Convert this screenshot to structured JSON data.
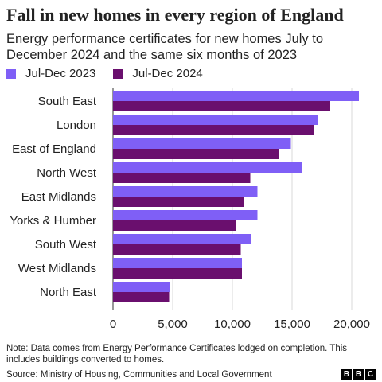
{
  "header": {
    "title": "Fall in new homes in every region of England",
    "subtitle": "Energy performance certificates for new homes July to December 2024 and the same six months of 2023"
  },
  "chart_data": {
    "type": "bar",
    "orientation": "horizontal",
    "title": "Fall in new homes in every region of England",
    "subtitle": "Energy performance certificates for new homes July to December 2024 and the same six months of 2023",
    "categories": [
      "South East",
      "London",
      "East of England",
      "North West",
      "East Midlands",
      "Yorks & Humber",
      "South West",
      "West Midlands",
      "North East"
    ],
    "series": [
      {
        "name": "Jul-Dec 2023",
        "color": "#7f5ff6",
        "values": [
          20600,
          17200,
          14900,
          15800,
          12100,
          12100,
          11600,
          10800,
          4800
        ]
      },
      {
        "name": "Jul-Dec 2024",
        "color": "#6a0f6e",
        "values": [
          18200,
          16800,
          13900,
          11500,
          11000,
          10300,
          10700,
          10800,
          4700
        ]
      }
    ],
    "xlim": [
      0,
      22000
    ],
    "xticks": [
      0,
      5000,
      10000,
      15000,
      20000
    ],
    "xtick_labels": [
      "0",
      "5,000",
      "10,000",
      "15,000",
      "20,000"
    ],
    "xlabel": "",
    "ylabel": "",
    "grid": "vertical",
    "legend_position": "top-left"
  },
  "footer": {
    "note": "Note: Data comes from Energy Performance Certificates lodged on completion. This includes buildings converted to homes.",
    "source": "Source: Ministry of Housing, Communities and Local Government",
    "logo_letters": [
      "B",
      "B",
      "C"
    ]
  }
}
